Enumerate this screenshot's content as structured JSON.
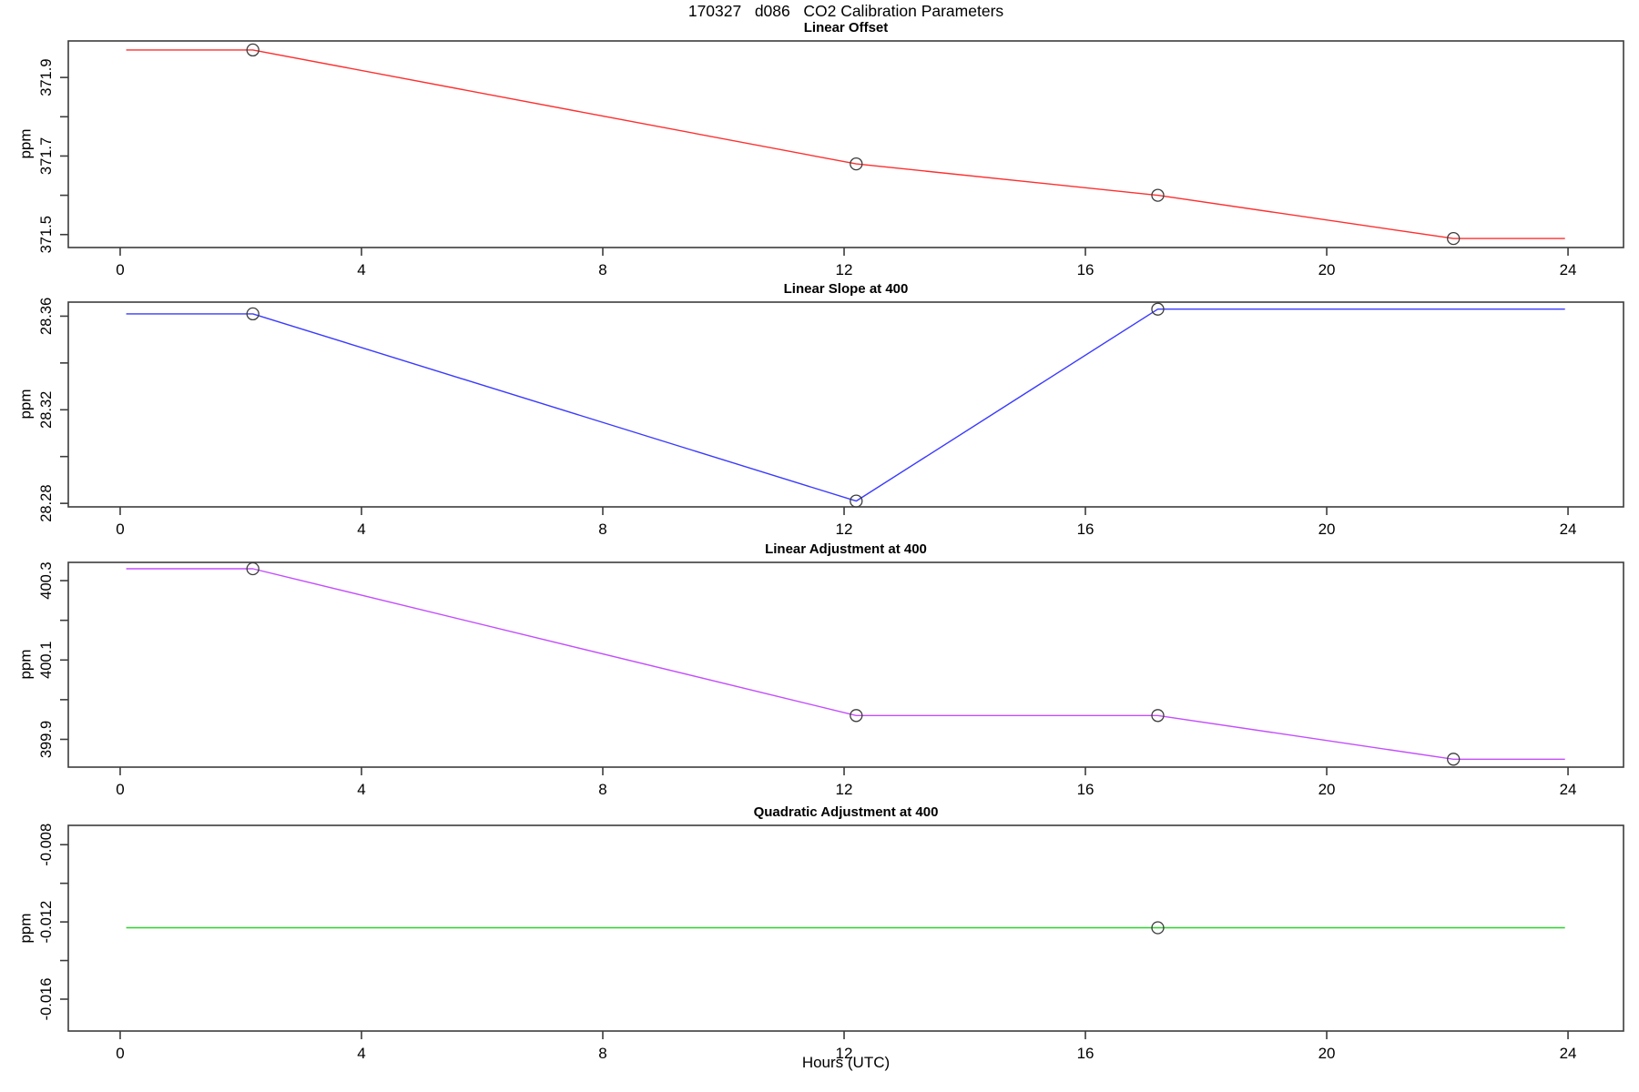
{
  "title": "170327   d086   CO2 Calibration Parameters",
  "x_axis": {
    "label": "Hours (UTC)",
    "ticks": [
      0,
      4,
      8,
      12,
      16,
      20,
      24
    ],
    "lim": [
      -0.86,
      24.92
    ]
  },
  "axis_color": "#3c3c3c",
  "marker_color": "#3c3c3c",
  "chart_data": [
    {
      "type": "line",
      "title": "Linear Offset",
      "ylabel": "ppm",
      "color": "#ff2e2e",
      "x": [
        0.1,
        2.2,
        12.2,
        17.2,
        22.1,
        23.95
      ],
      "y": [
        371.97,
        371.97,
        371.68,
        371.6,
        371.49,
        371.49
      ],
      "markers": {
        "x": [
          2.2,
          12.2,
          17.2,
          22.1
        ],
        "y": [
          371.97,
          371.68,
          371.6,
          371.49
        ]
      },
      "ylim": [
        371.467,
        371.993
      ],
      "yticks": [
        371.5,
        371.6,
        371.7,
        371.8,
        371.9
      ],
      "ytick_labels": [
        "371.5",
        "",
        "371.7",
        "",
        "371.9"
      ]
    },
    {
      "type": "line",
      "title": "Linear Slope at 400",
      "ylabel": "ppm",
      "color": "#3a3aff",
      "x": [
        0.1,
        2.2,
        12.2,
        17.2,
        23.95
      ],
      "y": [
        28.361,
        28.361,
        28.281,
        28.363,
        28.363
      ],
      "markers": {
        "x": [
          2.2,
          12.2,
          17.2
        ],
        "y": [
          28.361,
          28.281,
          28.363
        ]
      },
      "ylim": [
        28.2785,
        28.366
      ],
      "yticks": [
        28.28,
        28.3,
        28.32,
        28.34,
        28.36
      ],
      "ytick_labels": [
        "28.28",
        "",
        "28.32",
        "",
        "28.36"
      ]
    },
    {
      "type": "line",
      "title": "Linear Adjustment at 400",
      "ylabel": "ppm",
      "color": "#c44dff",
      "x": [
        0.1,
        2.2,
        12.2,
        17.2,
        22.1,
        23.95
      ],
      "y": [
        400.33,
        400.33,
        399.96,
        399.96,
        399.85,
        399.85
      ],
      "markers": {
        "x": [
          2.2,
          12.2,
          17.2,
          22.1
        ],
        "y": [
          400.33,
          399.96,
          399.96,
          399.85
        ]
      },
      "ylim": [
        399.83,
        400.346
      ],
      "yticks": [
        399.9,
        400.0,
        400.1,
        400.2,
        400.3
      ],
      "ytick_labels": [
        "399.9",
        "",
        "400.1",
        "",
        "400.3"
      ]
    },
    {
      "type": "line",
      "title": "Quadratic Adjustment at 400",
      "ylabel": "ppm",
      "color": "#2ad42a",
      "x": [
        0.1,
        17.2,
        23.95
      ],
      "y": [
        -0.0123,
        -0.0123,
        -0.0123
      ],
      "markers": {
        "x": [
          17.2
        ],
        "y": [
          -0.0123
        ]
      },
      "ylim": [
        -0.01765,
        -0.007
      ],
      "yticks": [
        -0.016,
        -0.014,
        -0.012,
        -0.01,
        -0.008
      ],
      "ytick_labels": [
        "-0.016",
        "",
        "-0.012",
        "",
        "-0.008"
      ]
    }
  ]
}
